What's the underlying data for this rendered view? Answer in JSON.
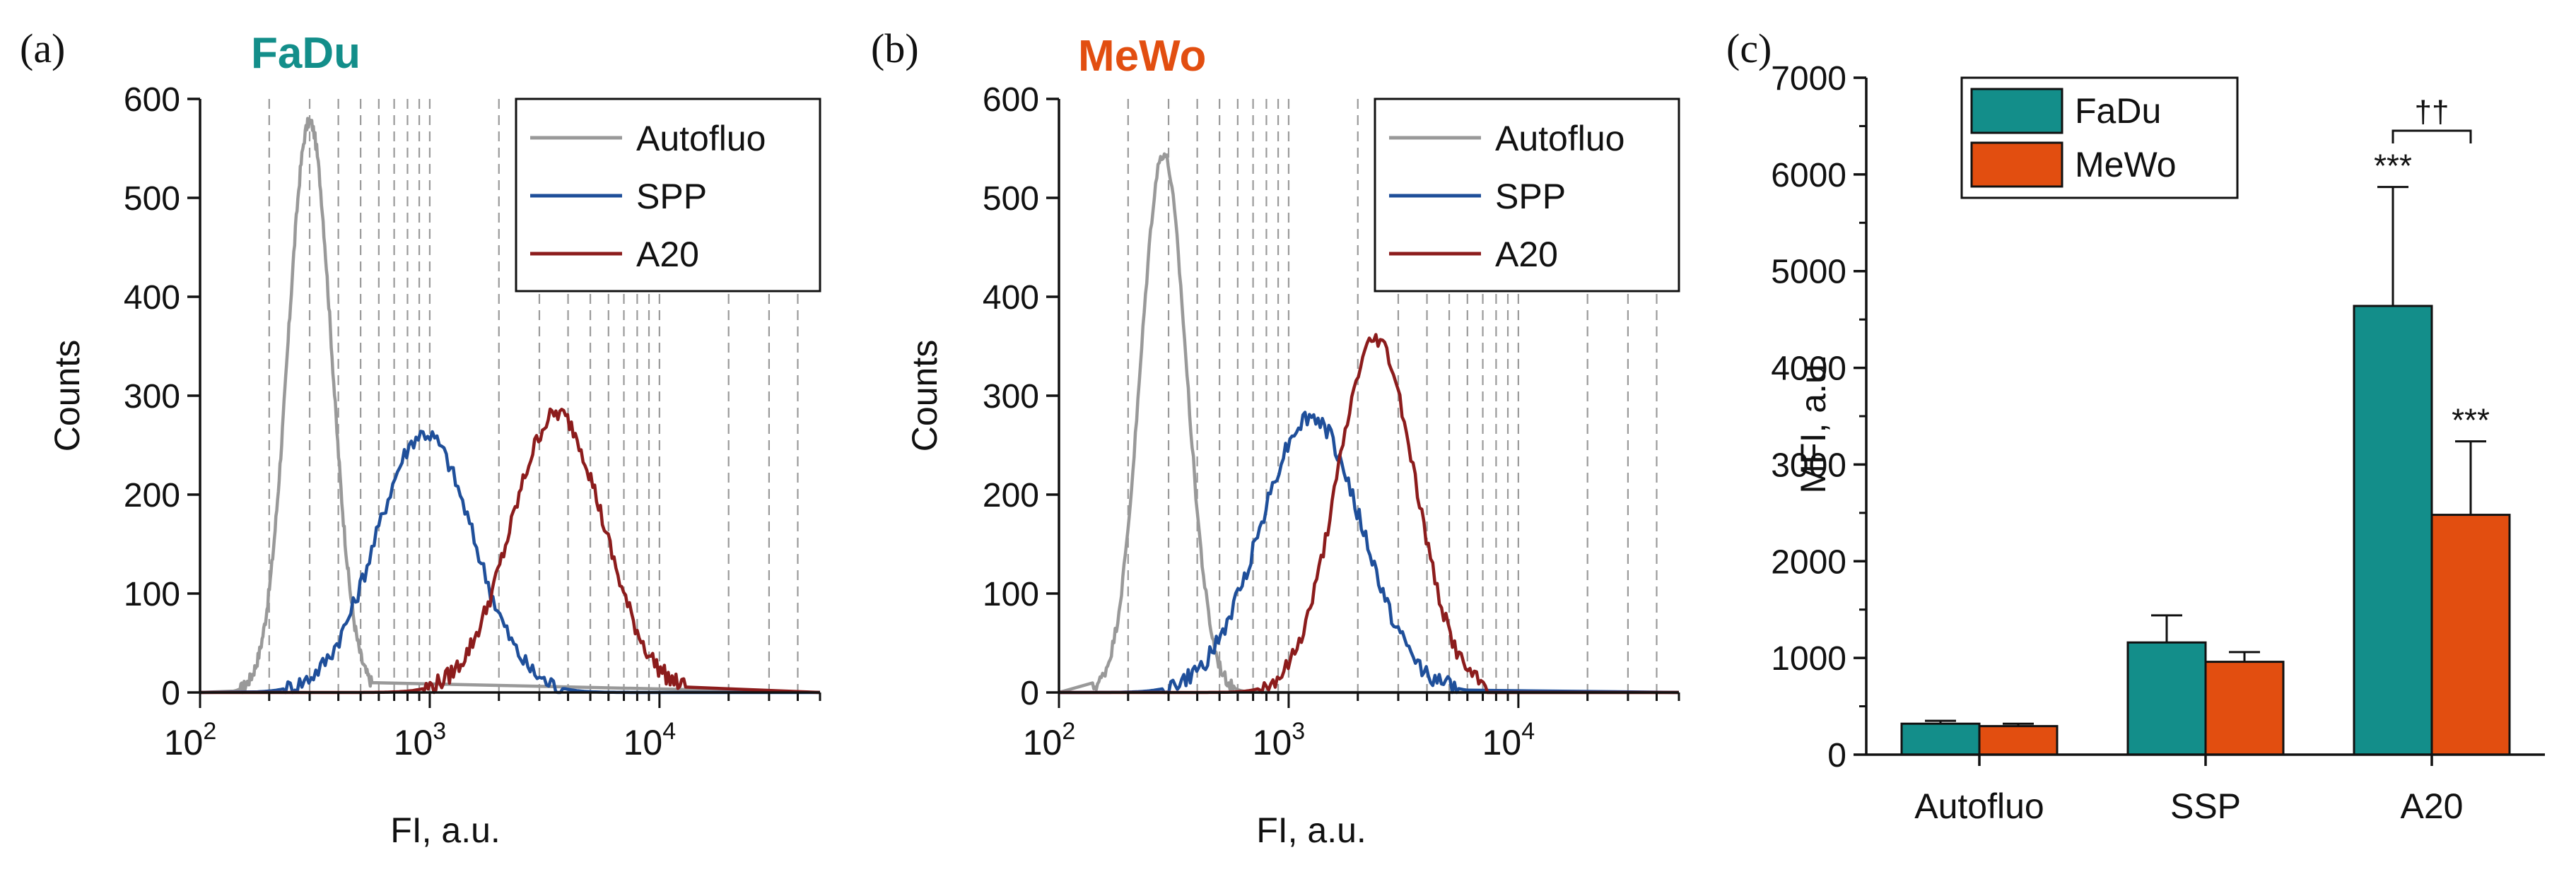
{
  "colors": {
    "autofluo": "#999999",
    "spp": "#1f4f9a",
    "a20": "#8c1c1c",
    "fadu": "#138e8a",
    "mewo": "#e24e10",
    "grid": "#9a9a9a"
  },
  "chart_data": [
    {
      "type": "line",
      "panel_label": "(a)",
      "title": "FaDu",
      "xlabel": "FI, a.u.",
      "ylabel": "Counts",
      "xscale": "log",
      "xlim": [
        100,
        50000
      ],
      "ylim": [
        0,
        600
      ],
      "yticks": [
        "0",
        "100",
        "200",
        "300",
        "400",
        "500",
        "600"
      ],
      "xticks": [
        {
          "base": "10",
          "exp": "2",
          "value": 100
        },
        {
          "base": "10",
          "exp": "3",
          "value": 1000
        },
        {
          "base": "10",
          "exp": "4",
          "value": 10000
        }
      ],
      "legend": [
        "Autofluo",
        "SPP",
        "A20"
      ],
      "legend_position": "top-right",
      "grid": "vertical dashed log minor",
      "series": [
        {
          "name": "Autofluo",
          "peak_x": 300,
          "peak_y": 577,
          "sigma_log": 0.095,
          "x_min": 140,
          "x_max": 560,
          "noise": 6
        },
        {
          "name": "SPP",
          "peak_x": 950,
          "peak_y": 262,
          "sigma_log": 0.21,
          "x_min": 170,
          "x_max": 9000,
          "noise": 9
        },
        {
          "name": "A20",
          "peak_x": 3600,
          "peak_y": 282,
          "sigma_log": 0.2,
          "x_min": 480,
          "x_max": 13000,
          "noise": 9
        }
      ]
    },
    {
      "type": "line",
      "panel_label": "(b)",
      "title": "MeWo",
      "xlabel": "FI, a.u.",
      "ylabel": "Counts",
      "xscale": "log",
      "xlim": [
        100,
        50000
      ],
      "ylim": [
        0,
        600
      ],
      "yticks": [
        "0",
        "100",
        "200",
        "300",
        "400",
        "500",
        "600"
      ],
      "xticks": [
        {
          "base": "10",
          "exp": "2",
          "value": 100
        },
        {
          "base": "10",
          "exp": "3",
          "value": 1000
        },
        {
          "base": "10",
          "exp": "4",
          "value": 10000
        }
      ],
      "legend": [
        "Autofluo",
        "SPP",
        "A20"
      ],
      "legend_position": "top-right",
      "grid": "vertical dashed log minor",
      "series": [
        {
          "name": "Autofluo",
          "peak_x": 285,
          "peak_y": 545,
          "sigma_log": 0.1,
          "x_min": 140,
          "x_max": 1200,
          "noise": 6
        },
        {
          "name": "SPP",
          "peak_x": 1250,
          "peak_y": 278,
          "sigma_log": 0.22,
          "x_min": 150,
          "x_max": 6000,
          "noise": 9
        },
        {
          "name": "A20",
          "peak_x": 2400,
          "peak_y": 358,
          "sigma_log": 0.17,
          "x_min": 180,
          "x_max": 7500,
          "noise": 8
        }
      ]
    },
    {
      "type": "bar",
      "panel_label": "(c)",
      "title": "",
      "xlabel": "",
      "ylabel": "MFI, a.u.",
      "ylim": [
        0,
        7000
      ],
      "yticks": [
        "0",
        "1000",
        "2000",
        "3000",
        "4000",
        "5000",
        "6000",
        "7000"
      ],
      "categories": [
        "Autofluo",
        "SSP",
        "A20"
      ],
      "series": [
        {
          "name": "FaDu",
          "values": [
            320,
            1160,
            4640
          ],
          "errors": [
            30,
            280,
            1230
          ]
        },
        {
          "name": "MeWo",
          "values": [
            295,
            960,
            2480
          ],
          "errors": [
            25,
            100,
            760
          ]
        }
      ],
      "legend_position": "top-left",
      "annotations": [
        {
          "text": "***",
          "category": "A20",
          "series": "FaDu"
        },
        {
          "text": "***",
          "category": "A20",
          "series": "MeWo"
        },
        {
          "text": "††",
          "category": "A20",
          "bracket": true
        }
      ]
    }
  ]
}
